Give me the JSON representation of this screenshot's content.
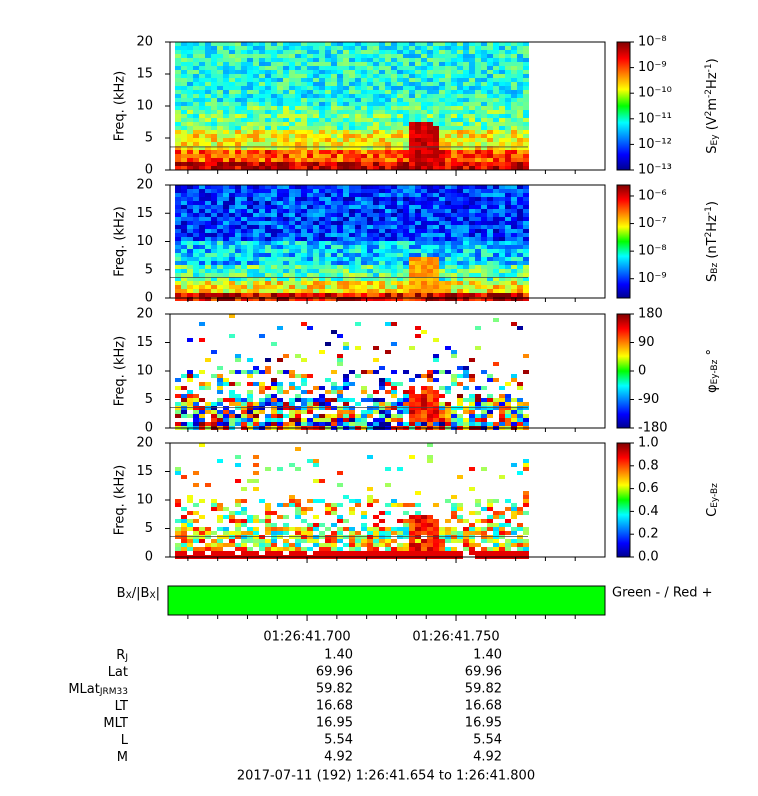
{
  "panels": [
    {
      "type": "spectrogram",
      "ylabel": "Freq. (kHz)",
      "ylim": [
        0,
        20
      ],
      "yticks": [
        0,
        5,
        10,
        15,
        20
      ],
      "hline": 3.6,
      "colorbar": {
        "scale": "log",
        "clim": [
          1e-13,
          1e-08
        ],
        "ticks": [
          {
            "value": 1e-08,
            "label": "10⁻⁸"
          },
          {
            "value": 1e-09,
            "label": "10⁻⁹"
          },
          {
            "value": 1e-10,
            "label": "10⁻¹⁰"
          },
          {
            "value": 1e-11,
            "label": "10⁻¹¹"
          },
          {
            "value": 1e-12,
            "label": "10⁻¹²"
          },
          {
            "value": 1e-13,
            "label": "10⁻¹³"
          }
        ],
        "label": [
          {
            "text": "S"
          },
          {
            "text": "Ey",
            "sub": true
          },
          {
            "text": " (V"
          },
          {
            "text": "2",
            "sup": true
          },
          {
            "text": "m"
          },
          {
            "text": "-2",
            "sup": true
          },
          {
            "text": "Hz"
          },
          {
            "text": "-1",
            "sup": true
          },
          {
            "text": ")"
          }
        ]
      }
    },
    {
      "type": "spectrogram",
      "ylabel": "Freq. (kHz)",
      "ylim": [
        0,
        20
      ],
      "yticks": [
        0,
        5,
        10,
        15,
        20
      ],
      "hline": 3.6,
      "colorbar": {
        "scale": "log",
        "clim": [
          2e-10,
          2.5e-06
        ],
        "ticks": [
          {
            "value": 1e-06,
            "label": "10⁻⁶"
          },
          {
            "value": 1e-07,
            "label": "10⁻⁷"
          },
          {
            "value": 1e-08,
            "label": "10⁻⁸"
          },
          {
            "value": 1e-09,
            "label": "10⁻⁹"
          }
        ],
        "label": [
          {
            "text": "S"
          },
          {
            "text": "Bz",
            "sub": true
          },
          {
            "text": " (nT"
          },
          {
            "text": "2",
            "sup": true
          },
          {
            "text": "Hz"
          },
          {
            "text": "-1",
            "sup": true
          },
          {
            "text": ")"
          }
        ]
      }
    },
    {
      "type": "phase",
      "ylabel": "Freq. (kHz)",
      "ylim": [
        0,
        20
      ],
      "yticks": [
        0,
        5,
        10,
        15,
        20
      ],
      "hline": 3.6,
      "colorbar": {
        "scale": "linear",
        "clim": [
          -180,
          180
        ],
        "ticks": [
          180,
          90,
          0,
          -90,
          -180
        ],
        "label": [
          {
            "text": "φ"
          },
          {
            "text": "Ey-Bz",
            "sub": true
          },
          {
            "text": " °"
          }
        ]
      }
    },
    {
      "type": "coherence",
      "ylabel": "Freq. (kHz)",
      "ylim": [
        0,
        20
      ],
      "yticks": [
        0,
        5,
        10,
        15,
        20
      ],
      "hline": 3.6,
      "colorbar": {
        "scale": "linear",
        "clim": [
          0,
          1
        ],
        "ticks": [
          {
            "value": 1,
            "label": "1.0"
          },
          0.8,
          0.6,
          0.4,
          0.2,
          {
            "value": 0,
            "label": "0.0"
          }
        ],
        "label": [
          {
            "text": "C"
          },
          {
            "text": "Ey-Bz",
            "sub": true
          }
        ]
      }
    }
  ],
  "x_axis": {
    "xlim": [
      41.654,
      41.8
    ],
    "xticks": [
      {
        "value": 41.7,
        "label": "01:26:41.700"
      },
      {
        "value": 41.75,
        "label": "01:26:41.750"
      }
    ],
    "minor_ticks": [
      41.66,
      41.67,
      41.68,
      41.69,
      41.71,
      41.72,
      41.73,
      41.74,
      41.76,
      41.77,
      41.78,
      41.79
    ]
  },
  "bx_panel": {
    "label": [
      {
        "text": "B"
      },
      {
        "text": "X",
        "sub": true
      },
      {
        "text": "/|B"
      },
      {
        "text": "X",
        "sub": true
      },
      {
        "text": "|"
      }
    ],
    "note": "Green - / Red +",
    "color": "#00ff00"
  },
  "ephemeris": [
    {
      "label": [
        {
          "text": "R"
        },
        {
          "text": "J",
          "sub": true
        }
      ],
      "values": [
        "1.40",
        "1.40"
      ]
    },
    {
      "label": [
        {
          "text": "Lat"
        }
      ],
      "values": [
        "69.96",
        "69.96"
      ]
    },
    {
      "label": [
        {
          "text": "MLat"
        },
        {
          "text": "JRM33",
          "sub": true
        }
      ],
      "values": [
        "59.82",
        "59.82"
      ]
    },
    {
      "label": [
        {
          "text": "LT"
        }
      ],
      "values": [
        "16.68",
        "16.68"
      ]
    },
    {
      "label": [
        {
          "text": "MLT"
        }
      ],
      "values": [
        "16.95",
        "16.95"
      ]
    },
    {
      "label": [
        {
          "text": "L"
        }
      ],
      "values": [
        "5.54",
        "5.54"
      ]
    },
    {
      "label": [
        {
          "text": "M"
        }
      ],
      "values": [
        "4.92",
        "4.92"
      ]
    }
  ],
  "footer": "2017-07-11 (192) 1:26:41.654 to 1:26:41.800"
}
